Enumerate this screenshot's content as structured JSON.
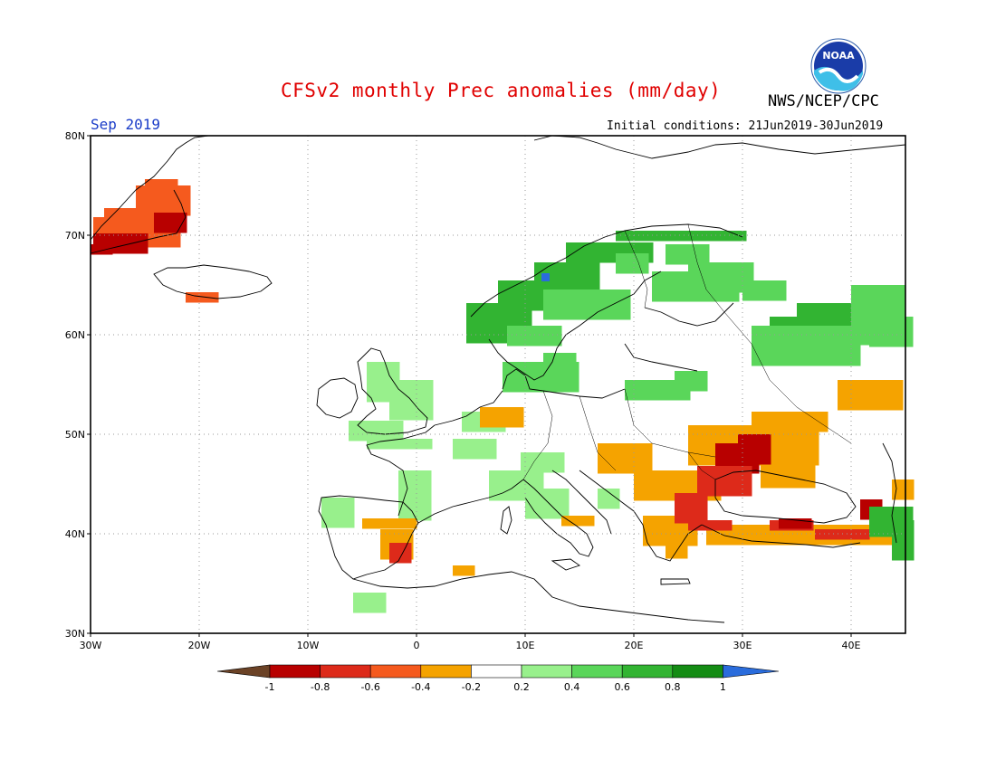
{
  "header": {
    "title": "CFSv2 monthly Prec anomalies (mm/day)",
    "agency": "NWS/NCEP/CPC",
    "period": "Sep 2019",
    "initial_conditions": "Initial conditions: 21Jun2019-30Jun2019",
    "logo_text": "NOAA"
  },
  "map": {
    "lon_range": [
      -30,
      45
    ],
    "lat_range": [
      30,
      80
    ],
    "lat_labels": [
      "80N",
      "70N",
      "60N",
      "50N",
      "40N",
      "30N"
    ],
    "lon_labels": [
      "30W",
      "20W",
      "10W",
      "0",
      "10E",
      "20E",
      "30E",
      "40E"
    ],
    "grid": "dotted"
  },
  "colorbar": {
    "labels": [
      "-1",
      "-0.8",
      "-0.6",
      "-0.4",
      "-0.2",
      "0.2",
      "0.4",
      "0.6",
      "0.8",
      "1"
    ],
    "colors": [
      "#6b4226",
      "#b80000",
      "#dd2a1a",
      "#f55a1e",
      "#f5a300",
      "#ffffff",
      "#98f08c",
      "#5ad65a",
      "#32b432",
      "#148c14",
      "#2a6cdc"
    ]
  },
  "anomaly_regions": [
    {
      "name": "east-greenland",
      "category": "-0.6",
      "color": "#f55a1e"
    },
    {
      "name": "east-greenland-coast",
      "category": "-0.8",
      "color": "#b80000"
    },
    {
      "name": "iceland-south",
      "category": "-0.6",
      "color": "#f55a1e"
    },
    {
      "name": "norway-coast",
      "category": "0.6",
      "color": "#32b432"
    },
    {
      "name": "scandinavia",
      "category": "0.4",
      "color": "#5ad65a"
    },
    {
      "name": "western-russia",
      "category": "0.6",
      "color": "#32b432"
    },
    {
      "name": "british-isles",
      "category": "0.2",
      "color": "#98f08c"
    },
    {
      "name": "ukraine-black-sea",
      "category": "-0.4",
      "color": "#f5a300"
    },
    {
      "name": "moldova",
      "category": "-0.8",
      "color": "#b80000"
    },
    {
      "name": "turkey",
      "category": "-0.6",
      "color": "#dd2a1a"
    },
    {
      "name": "spain-east",
      "category": "-0.4",
      "color": "#f5a300"
    },
    {
      "name": "iberia-nw",
      "category": "0.2",
      "color": "#98f08c"
    },
    {
      "name": "caucasus",
      "category": "0.6",
      "color": "#32b432"
    }
  ]
}
